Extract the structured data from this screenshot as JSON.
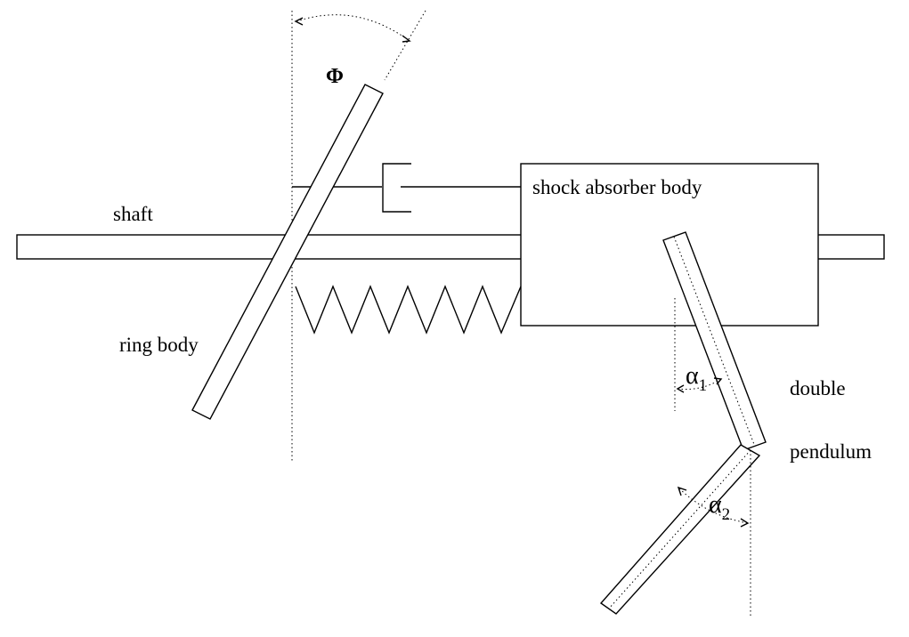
{
  "labels": {
    "phi": "Φ",
    "shaft": "shaft",
    "shock_absorber_body": "shock absorber body",
    "ring_body": "ring body",
    "double": "double",
    "pendulum": "pendulum",
    "alpha_1": {
      "symbol": "α",
      "subscript": "1"
    },
    "alpha_2": {
      "symbol": "α",
      "subscript": "2"
    }
  },
  "colors": {
    "line": "#000000",
    "background": "#ffffff"
  }
}
